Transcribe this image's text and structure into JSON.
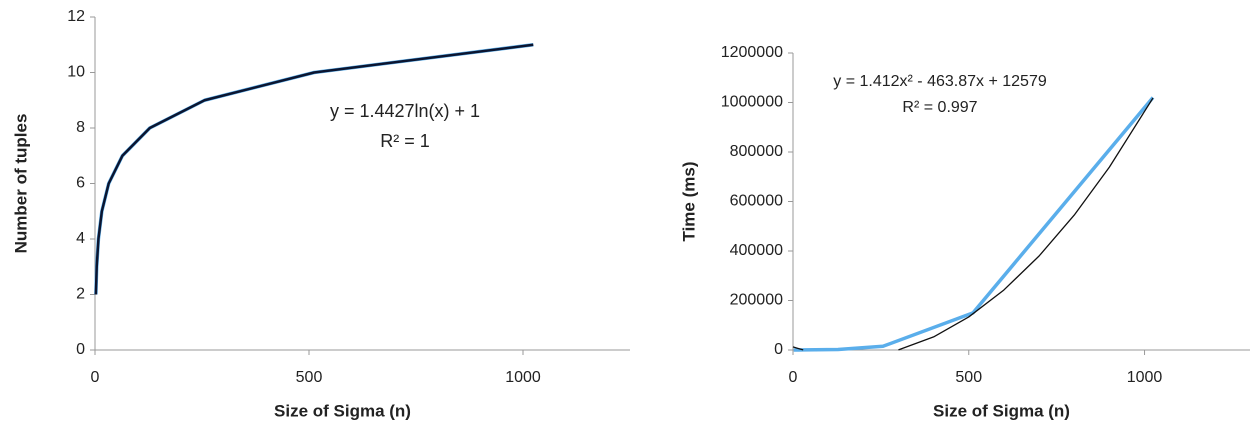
{
  "chart_data": [
    {
      "type": "line",
      "x_label": "Size of Sigma (n)",
      "y_label": "Number of tuples",
      "annotations": [
        "y = 1.4427ln(x) + 1",
        "R² = 1"
      ],
      "xlim": [
        0,
        1250
      ],
      "xticks": [
        0,
        500,
        1000
      ],
      "ylim": [
        0,
        12
      ],
      "yticks": [
        0,
        2,
        4,
        6,
        8,
        10,
        12
      ],
      "grid": false,
      "series": [
        {
          "color": "#5aaeeb",
          "x": [
            2,
            4,
            8,
            16,
            32,
            64,
            128,
            256,
            512,
            1024
          ],
          "values": [
            2,
            3,
            4,
            5,
            6,
            7,
            8,
            9,
            10,
            11
          ]
        },
        {
          "color": "#0b1530",
          "x": [
            2,
            4,
            8,
            16,
            32,
            64,
            128,
            256,
            512,
            1024
          ],
          "values": [
            2,
            3,
            4,
            5,
            6,
            7,
            8,
            9,
            10,
            11
          ]
        }
      ]
    },
    {
      "type": "line",
      "x_label": "Size of Sigma (n)",
      "y_label": "Time (ms)",
      "annotations": [
        "y = 1.412x² - 463.87x + 12579",
        "R² = 0.997"
      ],
      "xlim": [
        0,
        1300
      ],
      "xticks": [
        0,
        500,
        1000
      ],
      "ylim": [
        0,
        1200000
      ],
      "yticks": [
        0,
        200000,
        400000,
        600000,
        800000,
        1000000,
        1200000
      ],
      "grid": false,
      "series": [
        {
          "color": "#5aaeeb",
          "x": [
            2,
            4,
            8,
            16,
            32,
            64,
            128,
            256,
            512,
            1024
          ],
          "values": [
            0,
            0,
            0,
            100,
            300,
            800,
            2000,
            15000,
            150000,
            1020000
          ]
        },
        {
          "color": "#111111",
          "x": [
            0,
            10,
            20,
            29,
            160,
            300,
            400,
            500,
            600,
            700,
            800,
            900,
            1024
          ],
          "values": [
            12579,
            8082,
            3866,
            314,
            null,
            498,
            52951,
            133644,
            242577,
            379750,
            545163,
            738816,
            1018181
          ]
        }
      ]
    }
  ]
}
